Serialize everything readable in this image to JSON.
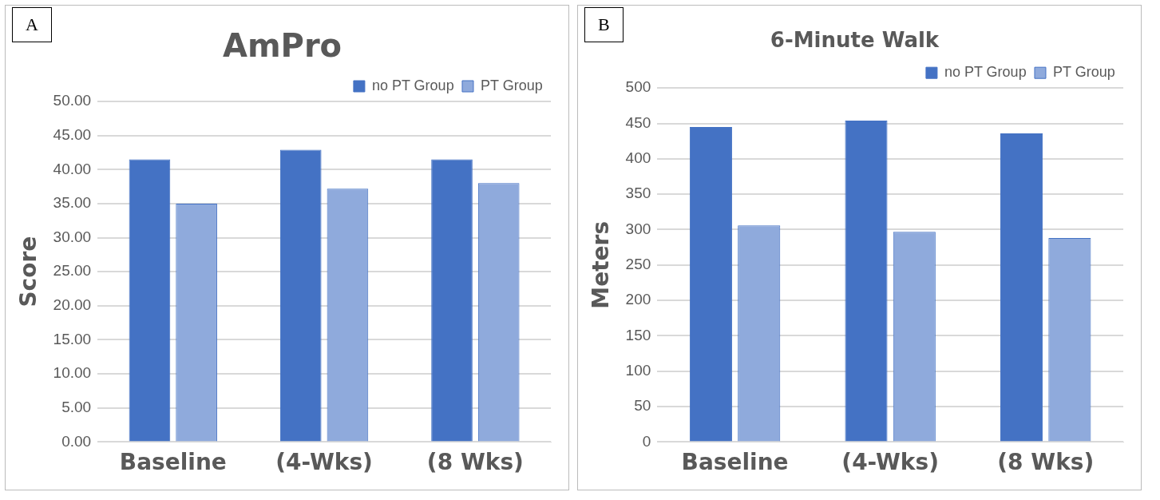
{
  "chart_data": [
    {
      "type": "bar",
      "title": "AmPro",
      "ylabel": "Score",
      "annotations": [
        "A"
      ],
      "categories": [
        "Baseline",
        "(4-Wks)",
        "(8 Wks)"
      ],
      "series": [
        {
          "name": "no PT Group",
          "color": "#4472c4",
          "values": [
            41.5,
            42.9,
            41.5
          ]
        },
        {
          "name": "PT Group",
          "color": "#8faadc",
          "values": [
            35.0,
            37.2,
            38.0
          ]
        }
      ],
      "ylim": [
        0,
        50
      ],
      "yticks": [
        {
          "value": 0,
          "label": "0.00"
        },
        {
          "value": 5,
          "label": "5.00"
        },
        {
          "value": 10,
          "label": "10.00"
        },
        {
          "value": 15,
          "label": "15.00"
        },
        {
          "value": 20,
          "label": "20.00"
        },
        {
          "value": 25,
          "label": "25.00"
        },
        {
          "value": 30,
          "label": "30.00"
        },
        {
          "value": 35,
          "label": "35.00"
        },
        {
          "value": 40,
          "label": "40.00"
        },
        {
          "value": 45,
          "label": "45.00"
        },
        {
          "value": 50,
          "label": "50.00"
        }
      ],
      "grid": "y",
      "legend": "top right"
    },
    {
      "type": "bar",
      "title": "6-Minute Walk",
      "ylabel": "Meters",
      "annotations": [
        "B"
      ],
      "categories": [
        "Baseline",
        "(4-Wks)",
        "(8 Wks)"
      ],
      "series": [
        {
          "name": "no PT Group",
          "color": "#4472c4",
          "values": [
            445,
            454,
            436
          ]
        },
        {
          "name": "PT Group",
          "color": "#8faadc",
          "values": [
            306,
            297,
            288
          ]
        }
      ],
      "ylim": [
        0,
        500
      ],
      "yticks": [
        0,
        50,
        100,
        150,
        200,
        250,
        300,
        350,
        400,
        450,
        500
      ],
      "grid": "y",
      "legend": "top right"
    }
  ]
}
